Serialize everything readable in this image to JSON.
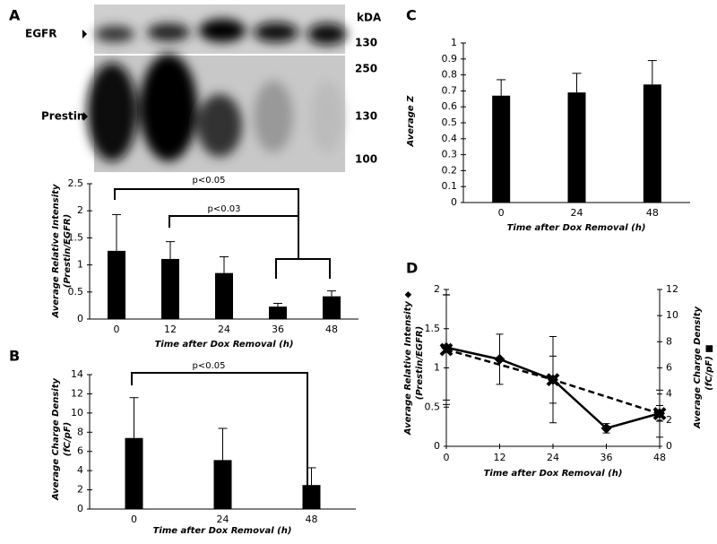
{
  "blot": {
    "labels": [
      "EGFR",
      "Prestin"
    ],
    "unit": "kDA",
    "markers": [
      130,
      250,
      130,
      100
    ]
  },
  "chart_data": [
    {
      "type": "bar",
      "panel": "A",
      "categories": [
        "0",
        "12",
        "24",
        "36",
        "48"
      ],
      "values": [
        1.26,
        1.11,
        0.85,
        0.23,
        0.42
      ],
      "errors": [
        0.67,
        0.32,
        0.3,
        0.06,
        0.1
      ],
      "color": "#000000",
      "ylim": [
        0,
        2.5
      ],
      "yticks": [
        0,
        0.5,
        1,
        1.5,
        2,
        2.5
      ],
      "ylabel": [
        "Average Relative Intensity",
        "(Prestin/EGFR)"
      ],
      "xlabel": "Time after Dox Removal (h)",
      "annotations": [
        "p<0.05",
        "p<0.03"
      ]
    },
    {
      "type": "bar",
      "panel": "B",
      "categories": [
        "0",
        "24",
        "48"
      ],
      "values": [
        7.4,
        5.1,
        2.5
      ],
      "errors": [
        4.2,
        3.3,
        1.8
      ],
      "color": "#000000",
      "ylim": [
        0,
        14
      ],
      "yticks": [
        0,
        2,
        4,
        6,
        8,
        10,
        12,
        14
      ],
      "ylabel": [
        "Average Charge Density",
        "(fC/pF)"
      ],
      "xlabel": "Time after Dox Removal (h)",
      "annotations": [
        "p<0.05"
      ]
    },
    {
      "type": "bar",
      "panel": "C",
      "categories": [
        "0",
        "24",
        "48"
      ],
      "values": [
        0.67,
        0.69,
        0.74
      ],
      "errors": [
        0.1,
        0.12,
        0.15
      ],
      "color": "#000000",
      "ylim": [
        0,
        1
      ],
      "yticks": [
        0,
        0.1,
        0.2,
        0.3,
        0.4,
        0.5,
        0.6,
        0.7,
        0.8,
        0.9,
        1
      ],
      "ylabel": [
        "Average Z"
      ],
      "xlabel": "Time after Dox Removal (h)",
      "annotations": []
    },
    {
      "type": "line",
      "panel": "D",
      "x": [
        0,
        12,
        24,
        36,
        48
      ],
      "xlim": [
        0,
        48
      ],
      "xticks": [
        0,
        12,
        24,
        36,
        48
      ],
      "ylim": [
        0,
        2
      ],
      "yticks": [
        0,
        0.5,
        1,
        1.5,
        2
      ],
      "y2lim": [
        0,
        12
      ],
      "y2ticks": [
        0,
        2,
        4,
        6,
        8,
        10,
        12
      ],
      "ylabel": [
        "Average Relative Intensity ◆",
        "(Prestin/EGFR)"
      ],
      "y2label": [
        "Average Charge Density",
        "(fC/pF) ■"
      ],
      "xlabel": "Time after Dox Removal (h)",
      "series": [
        {
          "color": "#000000",
          "marker": "diamond",
          "line_style": "solid",
          "values": [
            1.26,
            1.11,
            0.85,
            0.23,
            0.42
          ],
          "errors": [
            0.67,
            0.32,
            0.3,
            0.06,
            0.1
          ]
        },
        {
          "color": "#000000",
          "marker": "x",
          "line_style": "dashed",
          "axis": "y2",
          "x": [
            0,
            24,
            48
          ],
          "values": [
            7.4,
            5.1,
            2.5
          ],
          "errors": [
            4.2,
            3.3,
            1.8
          ]
        }
      ]
    }
  ]
}
